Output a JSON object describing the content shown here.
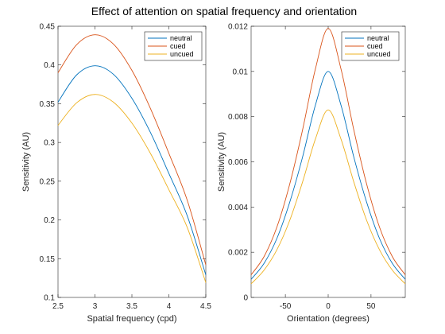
{
  "figure": {
    "title": "Effect of attention on spatial frequency and orientation"
  },
  "chart_data": [
    {
      "type": "line",
      "xlabel": "Spatial frequency (cpd)",
      "ylabel": "Sensitivity (AU)",
      "xlim": [
        2.5,
        4.5
      ],
      "ylim": [
        0.1,
        0.45
      ],
      "xticks": [
        2.5,
        3,
        3.5,
        4,
        4.5
      ],
      "xticklabels": [
        "2.5",
        "3",
        "3.5",
        "4",
        "4.5"
      ],
      "yticks": [
        0.1,
        0.15,
        0.2,
        0.25,
        0.3,
        0.35,
        0.4,
        0.45
      ],
      "yticklabels": [
        "0.1",
        "0.15",
        "0.2",
        "0.25",
        "0.3",
        "0.35",
        "0.4",
        "0.45"
      ],
      "grid": false,
      "legend": "top-right",
      "series": [
        {
          "name": "neutral",
          "color": "#0072BD",
          "x": [
            2.5,
            2.75,
            3.0,
            3.25,
            3.5,
            3.75,
            4.0,
            4.25,
            4.5
          ],
          "values": [
            0.352,
            0.387,
            0.399,
            0.388,
            0.357,
            0.313,
            0.26,
            0.205,
            0.129
          ]
        },
        {
          "name": "cued",
          "color": "#D95319",
          "x": [
            2.5,
            2.75,
            3.0,
            3.25,
            3.5,
            3.75,
            4.0,
            4.25,
            4.5
          ],
          "values": [
            0.39,
            0.426,
            0.439,
            0.427,
            0.393,
            0.344,
            0.286,
            0.225,
            0.142
          ]
        },
        {
          "name": "uncued",
          "color": "#EDB120",
          "x": [
            2.5,
            2.75,
            3.0,
            3.25,
            3.5,
            3.75,
            4.0,
            4.25,
            4.5
          ],
          "values": [
            0.322,
            0.351,
            0.362,
            0.352,
            0.325,
            0.286,
            0.239,
            0.19,
            0.119
          ]
        }
      ]
    },
    {
      "type": "line",
      "xlabel": "Orientation (degrees)",
      "ylabel": "Sensitivity (AU)",
      "xlim": [
        -90,
        90
      ],
      "ylim": [
        0,
        0.012
      ],
      "xticks": [
        -50,
        0,
        50
      ],
      "xticklabels": [
        "-50",
        "0",
        "50"
      ],
      "yticks": [
        0,
        0.002,
        0.004,
        0.006,
        0.008,
        0.01,
        0.012
      ],
      "yticklabels": [
        "0",
        "0.002",
        "0.004",
        "0.006",
        "0.008",
        "0.01",
        "0.012"
      ],
      "grid": false,
      "legend": "top-right",
      "series": [
        {
          "name": "neutral",
          "color": "#0072BD",
          "x": [
            -90,
            -75,
            -60,
            -45,
            -30,
            -15,
            0,
            15,
            30,
            45,
            60,
            75,
            90
          ],
          "values": [
            0.0008,
            0.0015,
            0.0026,
            0.0042,
            0.0062,
            0.0085,
            0.01,
            0.0085,
            0.0062,
            0.0042,
            0.0026,
            0.0015,
            0.0008
          ]
        },
        {
          "name": "cued",
          "color": "#D95319",
          "x": [
            -90,
            -75,
            -60,
            -45,
            -30,
            -15,
            0,
            15,
            30,
            45,
            60,
            75,
            90
          ],
          "values": [
            0.001,
            0.0018,
            0.0031,
            0.005,
            0.0074,
            0.0101,
            0.0119,
            0.0101,
            0.0074,
            0.005,
            0.0031,
            0.0018,
            0.001
          ]
        },
        {
          "name": "uncued",
          "color": "#EDB120",
          "x": [
            -90,
            -75,
            -60,
            -45,
            -30,
            -15,
            0,
            15,
            30,
            45,
            60,
            75,
            90
          ],
          "values": [
            0.0006,
            0.0012,
            0.0021,
            0.0034,
            0.0051,
            0.007,
            0.0083,
            0.007,
            0.0051,
            0.0034,
            0.0021,
            0.0012,
            0.0006
          ]
        }
      ]
    }
  ]
}
